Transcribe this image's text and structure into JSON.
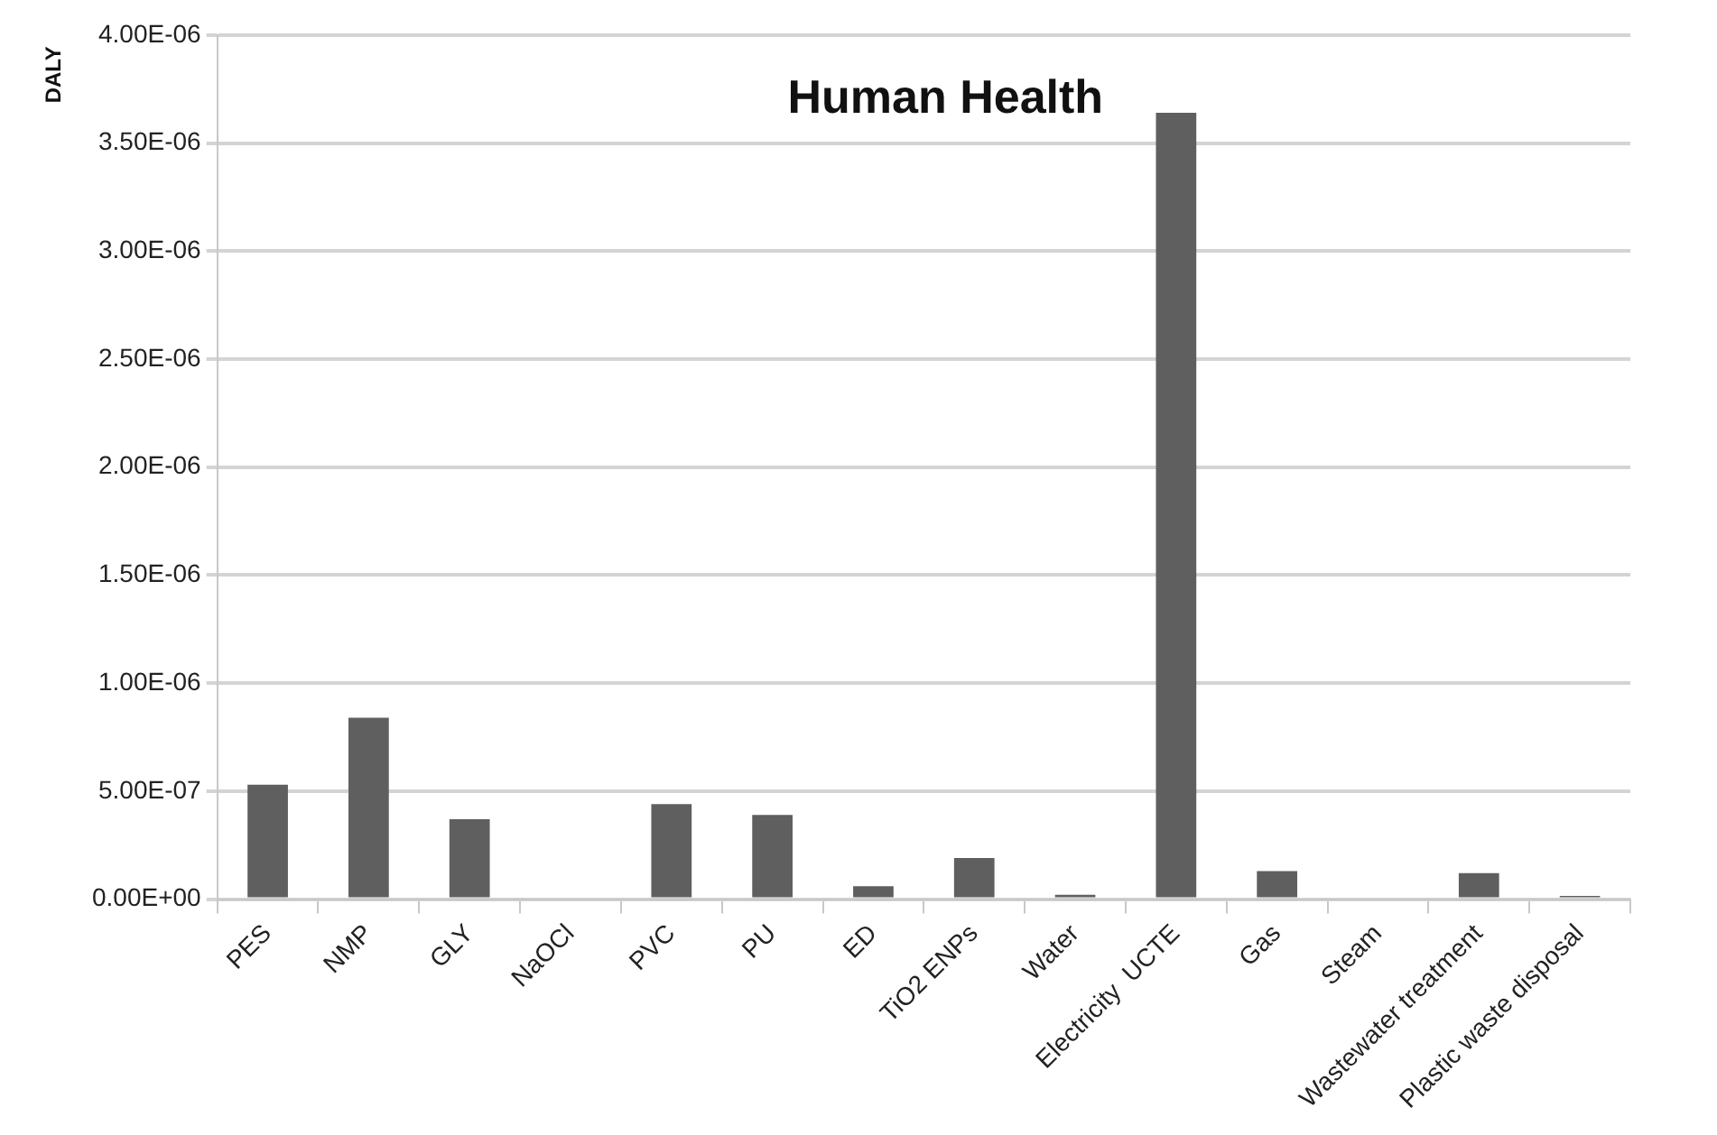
{
  "chart_data": {
    "type": "bar",
    "title": "Human Health",
    "ylabel": "DALY",
    "categories": [
      "PES",
      "NMP",
      "GLY",
      "NaOCl",
      "PVC",
      "PU",
      "ED",
      "TiO2 ENPs",
      "Water",
      "Electricity  UCTE",
      "Gas",
      "Steam",
      "Wastewater treatment",
      "Plastic waste disposal"
    ],
    "values": [
      5.3e-07,
      8.4e-07,
      3.7e-07,
      0,
      4.4e-07,
      3.9e-07,
      6e-08,
      1.9e-07,
      2e-08,
      3.64e-06,
      1.3e-07,
      0,
      1.2e-07,
      1.5e-08
    ],
    "color": "#5f5f5f",
    "ylim": [
      0,
      4e-06
    ],
    "yticks": [
      {
        "value": 0,
        "label": "0.00E+00"
      },
      {
        "value": 5e-07,
        "label": "5.00E-07"
      },
      {
        "value": 1e-06,
        "label": "1.00E-06"
      },
      {
        "value": 1.5e-06,
        "label": "1.50E-06"
      },
      {
        "value": 2e-06,
        "label": "2.00E-06"
      },
      {
        "value": 2.5e-06,
        "label": "2.50E-06"
      },
      {
        "value": 3e-06,
        "label": "3.00E-06"
      },
      {
        "value": 3.5e-06,
        "label": "3.50E-06"
      },
      {
        "value": 4e-06,
        "label": "4.00E-06"
      }
    ],
    "grid": "y",
    "legend": false
  }
}
